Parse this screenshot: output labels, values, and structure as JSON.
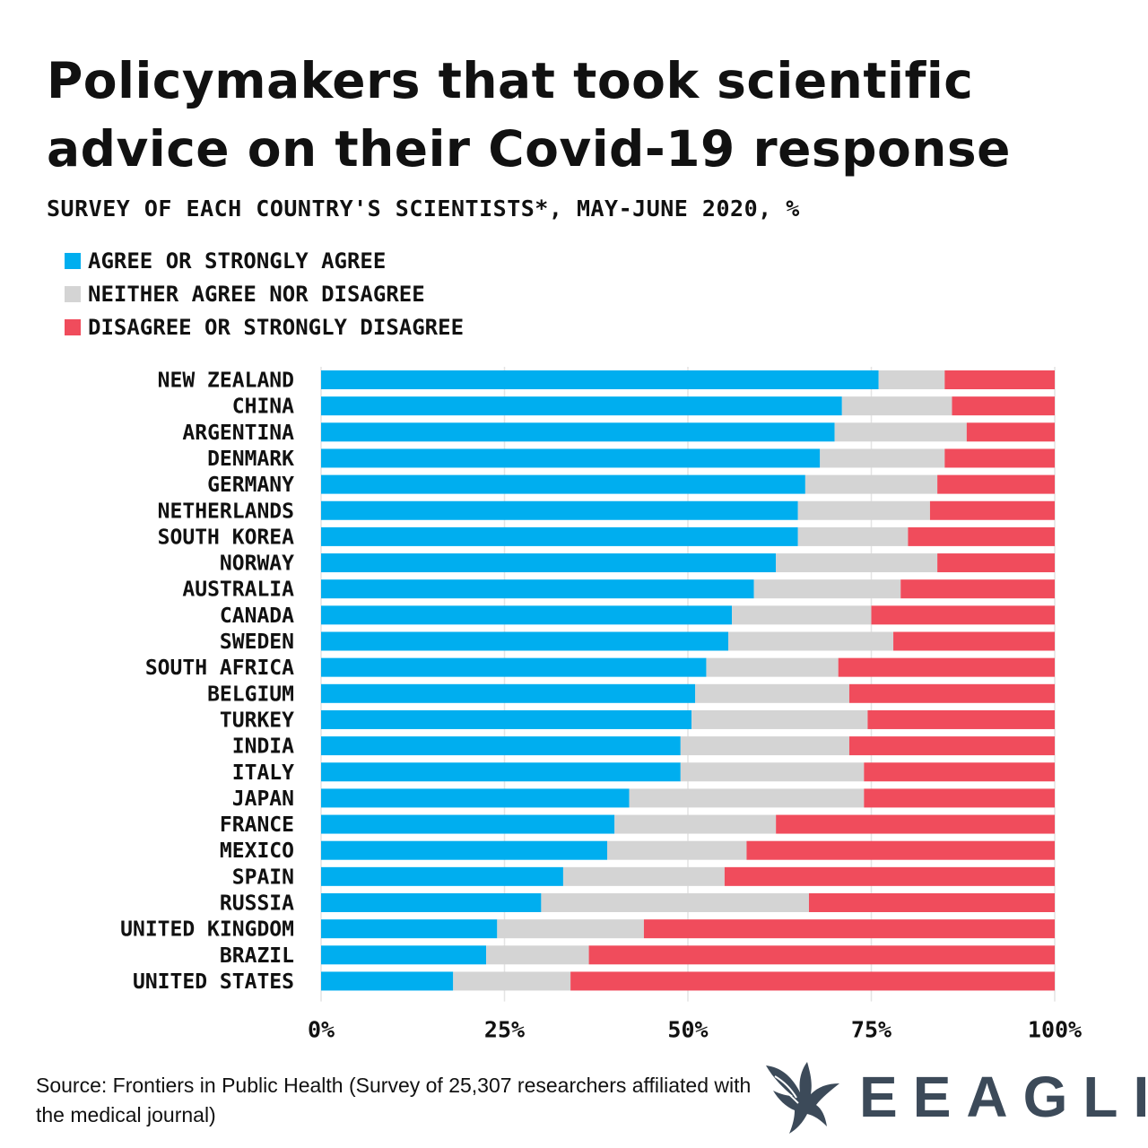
{
  "title": "Policymakers that took scientific advice on their Covid-19 response",
  "subtitle": "Survey of each country's scientists*, May-June 2020, %",
  "legend": [
    {
      "label": "Agree or strongly agree",
      "color": "#00aeef"
    },
    {
      "label": "Neither agree nor disagree",
      "color": "#d4d4d4"
    },
    {
      "label": "Disagree or strongly disagree",
      "color": "#f04c5c"
    }
  ],
  "source": "Source: Frontiers in Public Health (Survey of 25,307 researchers affiliated with the medical journal)",
  "brand": {
    "name": "EEAGLI",
    "logo_icon": "eagle-logo-icon",
    "color": "#3c4a59"
  },
  "chart_data": {
    "type": "bar",
    "orientation": "horizontal",
    "stacked": true,
    "title": "Policymakers that took scientific advice on their Covid-19 response",
    "subtitle": "Survey of each country's scientists*, May-June 2020, %",
    "xlim": [
      0,
      100
    ],
    "xticks": [
      "0%",
      "25%",
      "50%",
      "75%",
      "100%"
    ],
    "grid": true,
    "legend_position": "top-left",
    "categories": [
      "New Zealand",
      "China",
      "Argentina",
      "Denmark",
      "Germany",
      "Netherlands",
      "South Korea",
      "Norway",
      "Australia",
      "Canada",
      "Sweden",
      "South Africa",
      "Belgium",
      "Turkey",
      "India",
      "Italy",
      "Japan",
      "France",
      "Mexico",
      "Spain",
      "Russia",
      "United Kingdom",
      "Brazil",
      "United States"
    ],
    "series": [
      {
        "name": "Agree or strongly agree",
        "color": "#00aeef",
        "values": [
          76,
          71,
          70,
          68,
          66,
          65,
          65,
          62,
          59,
          56,
          55.5,
          52.5,
          51,
          50.5,
          49,
          49,
          42,
          40,
          39,
          33,
          30,
          24,
          22.5,
          18
        ]
      },
      {
        "name": "Neither agree nor disagree",
        "color": "#d4d4d4",
        "values": [
          9,
          15,
          18,
          17,
          18,
          18,
          15,
          22,
          20,
          19,
          22.5,
          18,
          21,
          24,
          23,
          25,
          32,
          22,
          19,
          22,
          36.5,
          20,
          14,
          16
        ]
      },
      {
        "name": "Disagree or strongly disagree",
        "color": "#f04c5c",
        "values": [
          15,
          14,
          12,
          15,
          16,
          17,
          20,
          16,
          21,
          25,
          22,
          29.5,
          28,
          25.5,
          28,
          26,
          26,
          38,
          42,
          45,
          33.5,
          56,
          63.5,
          66
        ]
      }
    ]
  }
}
